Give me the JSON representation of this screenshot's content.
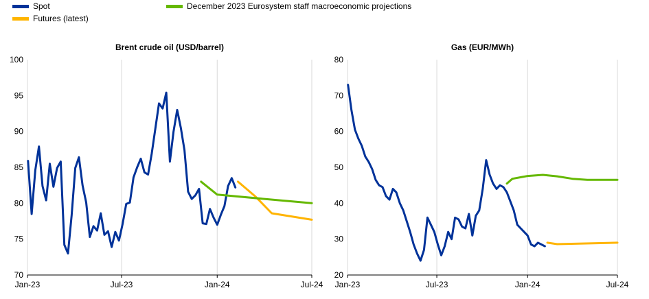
{
  "legend": [
    {
      "label": "Spot",
      "color": "#003299"
    },
    {
      "label": "Futures (latest)",
      "color": "#FFB400"
    },
    {
      "label": "December 2023 Eurosystem staff macroeconomic projections",
      "color": "#65B800"
    }
  ],
  "chart_data": [
    {
      "type": "line",
      "title": "Brent crude oil (USD/barrel)",
      "xlabel": "",
      "ylabel": "",
      "x_ticks": [
        "Jan-23",
        "Jul-23",
        "Jan-24",
        "Jul-24"
      ],
      "ylim": [
        70,
        100
      ],
      "y_ticks": [
        70,
        75,
        80,
        85,
        90,
        95,
        100
      ],
      "grid": "vertical",
      "series": [
        {
          "name": "Spot",
          "color": "#003299",
          "x": [
            "2023-01-02",
            "2023-01-09",
            "2023-01-16",
            "2023-01-23",
            "2023-01-30",
            "2023-02-06",
            "2023-02-13",
            "2023-02-20",
            "2023-02-27",
            "2023-03-06",
            "2023-03-13",
            "2023-03-20",
            "2023-03-27",
            "2023-04-03",
            "2023-04-10",
            "2023-04-17",
            "2023-04-24",
            "2023-05-01",
            "2023-05-08",
            "2023-05-15",
            "2023-05-22",
            "2023-05-29",
            "2023-06-05",
            "2023-06-12",
            "2023-06-19",
            "2023-06-26",
            "2023-07-03",
            "2023-07-10",
            "2023-07-17",
            "2023-07-24",
            "2023-07-31",
            "2023-08-07",
            "2023-08-14",
            "2023-08-21",
            "2023-08-28",
            "2023-09-04",
            "2023-09-11",
            "2023-09-18",
            "2023-09-25",
            "2023-10-02",
            "2023-10-09",
            "2023-10-16",
            "2023-10-23",
            "2023-10-30",
            "2023-11-06",
            "2023-11-13",
            "2023-11-20",
            "2023-11-27",
            "2023-12-04",
            "2023-12-11",
            "2023-12-18",
            "2023-12-25",
            "2024-01-01",
            "2024-01-08",
            "2024-01-15",
            "2024-01-22",
            "2024-01-29",
            "2024-02-05"
          ],
          "values": [
            85.9,
            78.5,
            84.6,
            87.9,
            82.4,
            80.4,
            85.5,
            82.3,
            84.9,
            85.8,
            74.2,
            73.0,
            78.3,
            84.9,
            86.4,
            82.5,
            80.1,
            75.3,
            76.8,
            76.2,
            78.6,
            75.6,
            76.1,
            73.9,
            76.0,
            74.8,
            77.1,
            79.9,
            80.1,
            83.6,
            85.0,
            86.2,
            84.3,
            84.0,
            86.9,
            90.4,
            93.9,
            93.2,
            95.4,
            85.8,
            90.0,
            93.0,
            90.5,
            87.4,
            81.6,
            80.6,
            81.1,
            82.0,
            77.2,
            77.1,
            79.2,
            78.0,
            77.0,
            78.4,
            79.6,
            82.4,
            83.5,
            82.2
          ]
        },
        {
          "name": "Futures (latest)",
          "color": "#FFB400",
          "x": [
            "2024-02-10",
            "2024-03-15",
            "2024-04-15",
            "2024-07-01"
          ],
          "values": [
            83.0,
            80.9,
            78.6,
            77.7
          ]
        },
        {
          "name": "December 2023 Eurosystem staff macroeconomic projections",
          "color": "#65B800",
          "x": [
            "2023-12-01",
            "2024-01-01",
            "2024-04-01",
            "2024-07-01"
          ],
          "values": [
            83.0,
            81.2,
            80.6,
            80.0
          ]
        }
      ]
    },
    {
      "type": "line",
      "title": "Gas (EUR/MWh)",
      "xlabel": "",
      "ylabel": "",
      "x_ticks": [
        "Jan-23",
        "Jul-23",
        "Jan-24",
        "Jul-24"
      ],
      "ylim": [
        20,
        80
      ],
      "y_ticks": [
        20,
        30,
        40,
        50,
        60,
        70,
        80
      ],
      "grid": "vertical",
      "series": [
        {
          "name": "Spot",
          "color": "#003299",
          "x": [
            "2023-01-02",
            "2023-01-09",
            "2023-01-16",
            "2023-01-23",
            "2023-01-30",
            "2023-02-06",
            "2023-02-13",
            "2023-02-20",
            "2023-02-27",
            "2023-03-06",
            "2023-03-13",
            "2023-03-20",
            "2023-03-27",
            "2023-04-03",
            "2023-04-10",
            "2023-04-17",
            "2023-04-24",
            "2023-05-01",
            "2023-05-08",
            "2023-05-15",
            "2023-05-22",
            "2023-05-29",
            "2023-06-05",
            "2023-06-12",
            "2023-06-19",
            "2023-06-26",
            "2023-07-03",
            "2023-07-10",
            "2023-07-17",
            "2023-07-24",
            "2023-07-31",
            "2023-08-07",
            "2023-08-14",
            "2023-08-21",
            "2023-08-28",
            "2023-09-04",
            "2023-09-11",
            "2023-09-18",
            "2023-09-25",
            "2023-10-02",
            "2023-10-09",
            "2023-10-16",
            "2023-10-23",
            "2023-10-30",
            "2023-11-06",
            "2023-11-13",
            "2023-11-20",
            "2023-11-27",
            "2023-12-04",
            "2023-12-11",
            "2023-12-18",
            "2023-12-25",
            "2024-01-01",
            "2024-01-08",
            "2024-01-15",
            "2024-01-22",
            "2024-01-29",
            "2024-02-05"
          ],
          "values": [
            73.0,
            66.0,
            60.5,
            58.0,
            56.0,
            53.0,
            51.5,
            49.5,
            46.5,
            45.0,
            44.5,
            42.0,
            41.0,
            44.0,
            43.0,
            40.0,
            38.0,
            35.0,
            32.0,
            28.5,
            26.0,
            24.0,
            27.0,
            36.0,
            34.0,
            32.0,
            28.5,
            25.5,
            28.0,
            32.0,
            30.0,
            36.0,
            35.5,
            33.5,
            33.0,
            37.0,
            31.0,
            36.5,
            38.0,
            44.0,
            52.0,
            48.0,
            45.5,
            44.0,
            45.0,
            44.5,
            43.0,
            40.5,
            38.0,
            34.0,
            33.0,
            32.0,
            31.0,
            28.5,
            28.0,
            29.0,
            28.5,
            28.0
          ]
        },
        {
          "name": "Futures (latest)",
          "color": "#FFB400",
          "x": [
            "2024-02-10",
            "2024-03-01",
            "2024-07-01"
          ],
          "values": [
            29.0,
            28.6,
            29.0
          ]
        },
        {
          "name": "December 2023 Eurosystem staff macroeconomic projections",
          "color": "#65B800",
          "x": [
            "2023-11-20",
            "2023-12-01",
            "2024-01-01",
            "2024-02-01",
            "2024-03-01",
            "2024-04-01",
            "2024-05-01",
            "2024-07-01"
          ],
          "values": [
            45.5,
            46.8,
            47.6,
            47.9,
            47.5,
            46.8,
            46.5,
            46.5
          ]
        }
      ]
    }
  ]
}
